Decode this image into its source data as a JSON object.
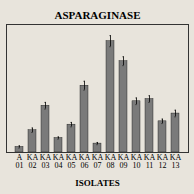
{
  "chart_data": {
    "type": "bar",
    "title": "ASPARAGINASE",
    "xlabel": "ISOLATES",
    "categories": [
      "A\n01",
      "KA\n02",
      "KA\n03",
      "KA\n04",
      "KA\n05",
      "KA\n06",
      "KA\n07",
      "KA\n08",
      "KA\n09",
      "KA\n10",
      "KA\n11",
      "KA\n12",
      "KA\n13"
    ],
    "values": [
      0.05,
      0.2,
      0.42,
      0.13,
      0.25,
      0.6,
      0.08,
      1.0,
      0.82,
      0.46,
      0.48,
      0.28,
      0.35
    ],
    "errors": [
      0.01,
      0.02,
      0.03,
      0.01,
      0.02,
      0.04,
      0.01,
      0.05,
      0.04,
      0.03,
      0.03,
      0.02,
      0.03
    ],
    "color": "#7a7a7a",
    "ylim": [
      0,
      1.15
    ],
    "tick_labels": "x"
  }
}
